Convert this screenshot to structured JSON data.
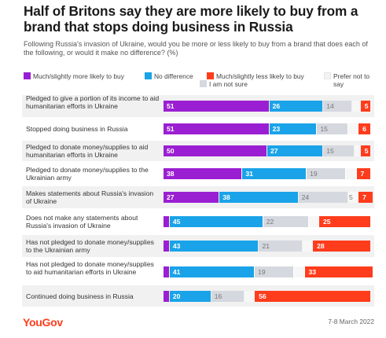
{
  "title": "Half of Britons say they are more likely to buy from a brand that stops doing business in Russia",
  "subtitle": "Following Russia's invasion of Ukraine, would you be more or less likely to buy from a brand that does each of the following, or would it make no difference? (%)",
  "footer": {
    "logo": "YouGov",
    "date": "7-8 March 2022"
  },
  "colors": {
    "more": "#9b1fd2",
    "no_difference": "#1aa3e8",
    "less": "#ff3c1c",
    "not_sure": "#d5d8df",
    "row_bg": "#f1f1f1"
  },
  "chart_data": {
    "type": "bar",
    "orientation": "horizontal",
    "stacked": true,
    "categories": [
      "Pledged to give a portion of its income to aid humanitarian efforts in Ukraine",
      "Stopped doing business in Russia",
      "Pledged to donate money/supplies to aid humanitarian efforts in Ukraine",
      "Pledged to donate money/supplies to the Ukrainian army",
      "Makes statements about Russia's invasion of Ukraine",
      "Does not make any statements about Russia's invasion of Ukraine",
      "Has not pledged to donate money/supplies to the Ukrainian army",
      "Has not pledged to donate money/supplies to aid humanitarian efforts in Ukraine",
      "Continued doing business in Russia"
    ],
    "series": [
      {
        "name": "Much/slightly more likely to buy",
        "color": "#9b1fd2",
        "values": [
          51,
          51,
          50,
          38,
          27,
          3,
          3,
          3,
          3
        ]
      },
      {
        "name": "No difference",
        "color": "#1aa3e8",
        "values": [
          26,
          23,
          27,
          31,
          38,
          45,
          43,
          41,
          20
        ]
      },
      {
        "name": "I am not sure",
        "color": "#d5d8df",
        "values": [
          14,
          15,
          15,
          19,
          24,
          22,
          21,
          19,
          16
        ]
      },
      {
        "name": "Prefer not to say",
        "color": "#f7f7f7",
        "values": [
          4,
          5,
          3,
          5,
          5,
          5,
          5,
          5,
          5
        ]
      },
      {
        "name": "Much/slightly less likely to buy",
        "color": "#ff3c1c",
        "values": [
          5,
          6,
          5,
          7,
          7,
          25,
          28,
          33,
          56
        ]
      }
    ],
    "labels": {
      "more": [
        "51",
        "51",
        "50",
        "38",
        "27",
        "",
        "",
        "",
        ""
      ],
      "no_difference": [
        "26",
        "23",
        "27",
        "31",
        "38",
        "45",
        "43",
        "41",
        "20"
      ],
      "not_sure": [
        "14",
        "15",
        "15",
        "19",
        "24",
        "22",
        "21",
        "19",
        "16"
      ],
      "prefer_not": [
        "",
        "",
        "",
        "",
        "5",
        "",
        "",
        "",
        ""
      ],
      "less": [
        "5",
        "6",
        "5",
        "7",
        "7",
        "25",
        "28",
        "33",
        "56"
      ]
    },
    "legend": [
      {
        "key": "more",
        "label": "Much/slightly more likely to buy"
      },
      {
        "key": "no_difference",
        "label": "No difference"
      },
      {
        "key": "less",
        "label": "Much/slightly less likely to buy"
      },
      {
        "key": "prefer_not",
        "label": "Prefer not to say"
      },
      {
        "key": "not_sure",
        "label": "I am not sure"
      }
    ],
    "legend_position": "top",
    "xlim": [
      0,
      100
    ]
  }
}
